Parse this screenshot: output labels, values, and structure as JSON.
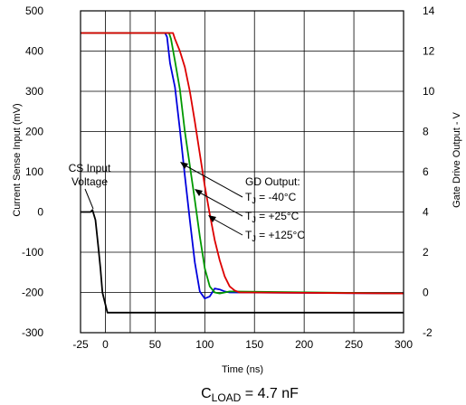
{
  "chart_data": {
    "type": "line",
    "xlabel": "Time (ns)",
    "ylabel": "Current Sense Input (mV)",
    "y2label": "Gate Drive Output - V",
    "xlim": [
      -25,
      300
    ],
    "ylim": [
      -300,
      500
    ],
    "y2lim": [
      -2,
      14
    ],
    "x_ticks": [
      "-25",
      "0",
      "50",
      "100",
      "150",
      "200",
      "250",
      "300"
    ],
    "y_ticks": [
      "-300",
      "-200",
      "-100",
      "0",
      "100",
      "200",
      "300",
      "400",
      "500"
    ],
    "y2_ticks": [
      "-2",
      "0",
      "2",
      "4",
      "6",
      "8",
      "10",
      "12",
      "14"
    ],
    "grid": true,
    "caption": {
      "main": "C",
      "sub": "LOAD",
      "rest": " = 4.7 nF"
    },
    "annotations": [
      {
        "name": "cs-input-label",
        "lines": [
          "CS Input",
          "Voltage"
        ]
      },
      {
        "name": "gd-output-label",
        "lines": [
          "GD Output:"
        ]
      },
      {
        "name": "tj-minus40",
        "main": "T",
        "sub": "J",
        "rest": " = -40°C"
      },
      {
        "name": "tj-plus25",
        "main": "T",
        "sub": "J",
        "rest": " = +25°C"
      },
      {
        "name": "tj-plus125",
        "main": "T",
        "sub": "J",
        "rest": " = +125°C"
      }
    ],
    "series": [
      {
        "axis": "right",
        "color": "#0000dd",
        "x": [
          -25,
          60,
          62,
          65,
          70,
          75,
          80,
          85,
          90,
          95,
          100,
          105,
          110,
          115,
          120,
          125,
          300
        ],
        "y": [
          12.9,
          12.9,
          12.7,
          11.4,
          10.2,
          8.1,
          5.8,
          3.6,
          1.5,
          0.05,
          -0.3,
          -0.2,
          0.2,
          0.15,
          0.05,
          0.0,
          -0.05
        ]
      },
      {
        "axis": "right",
        "color": "#009900",
        "x": [
          -25,
          64,
          66,
          70,
          75,
          80,
          85,
          90,
          95,
          100,
          105,
          110,
          115,
          120,
          125,
          300
        ],
        "y": [
          12.9,
          12.9,
          12.6,
          11.5,
          10.1,
          8.0,
          6.3,
          4.6,
          2.8,
          1.2,
          0.3,
          0.0,
          -0.05,
          0.0,
          0.05,
          -0.05
        ]
      },
      {
        "axis": "right",
        "color": "#dd0000",
        "x": [
          -25,
          68,
          70,
          75,
          80,
          85,
          90,
          95,
          100,
          105,
          110,
          115,
          120,
          125,
          130,
          135,
          140,
          300
        ],
        "y": [
          12.9,
          12.9,
          12.6,
          12.0,
          11.2,
          10.0,
          8.5,
          6.9,
          5.3,
          3.9,
          2.6,
          1.6,
          0.8,
          0.3,
          0.1,
          0.0,
          0.0,
          -0.05
        ]
      },
      {
        "axis": "left",
        "color": "#000000",
        "x": [
          -25,
          -15,
          -13,
          -10,
          -7,
          -5,
          -3,
          0,
          2,
          300
        ],
        "y": [
          0,
          0,
          5,
          -20,
          -90,
          -140,
          -200,
          -230,
          -250,
          -250
        ]
      }
    ]
  }
}
